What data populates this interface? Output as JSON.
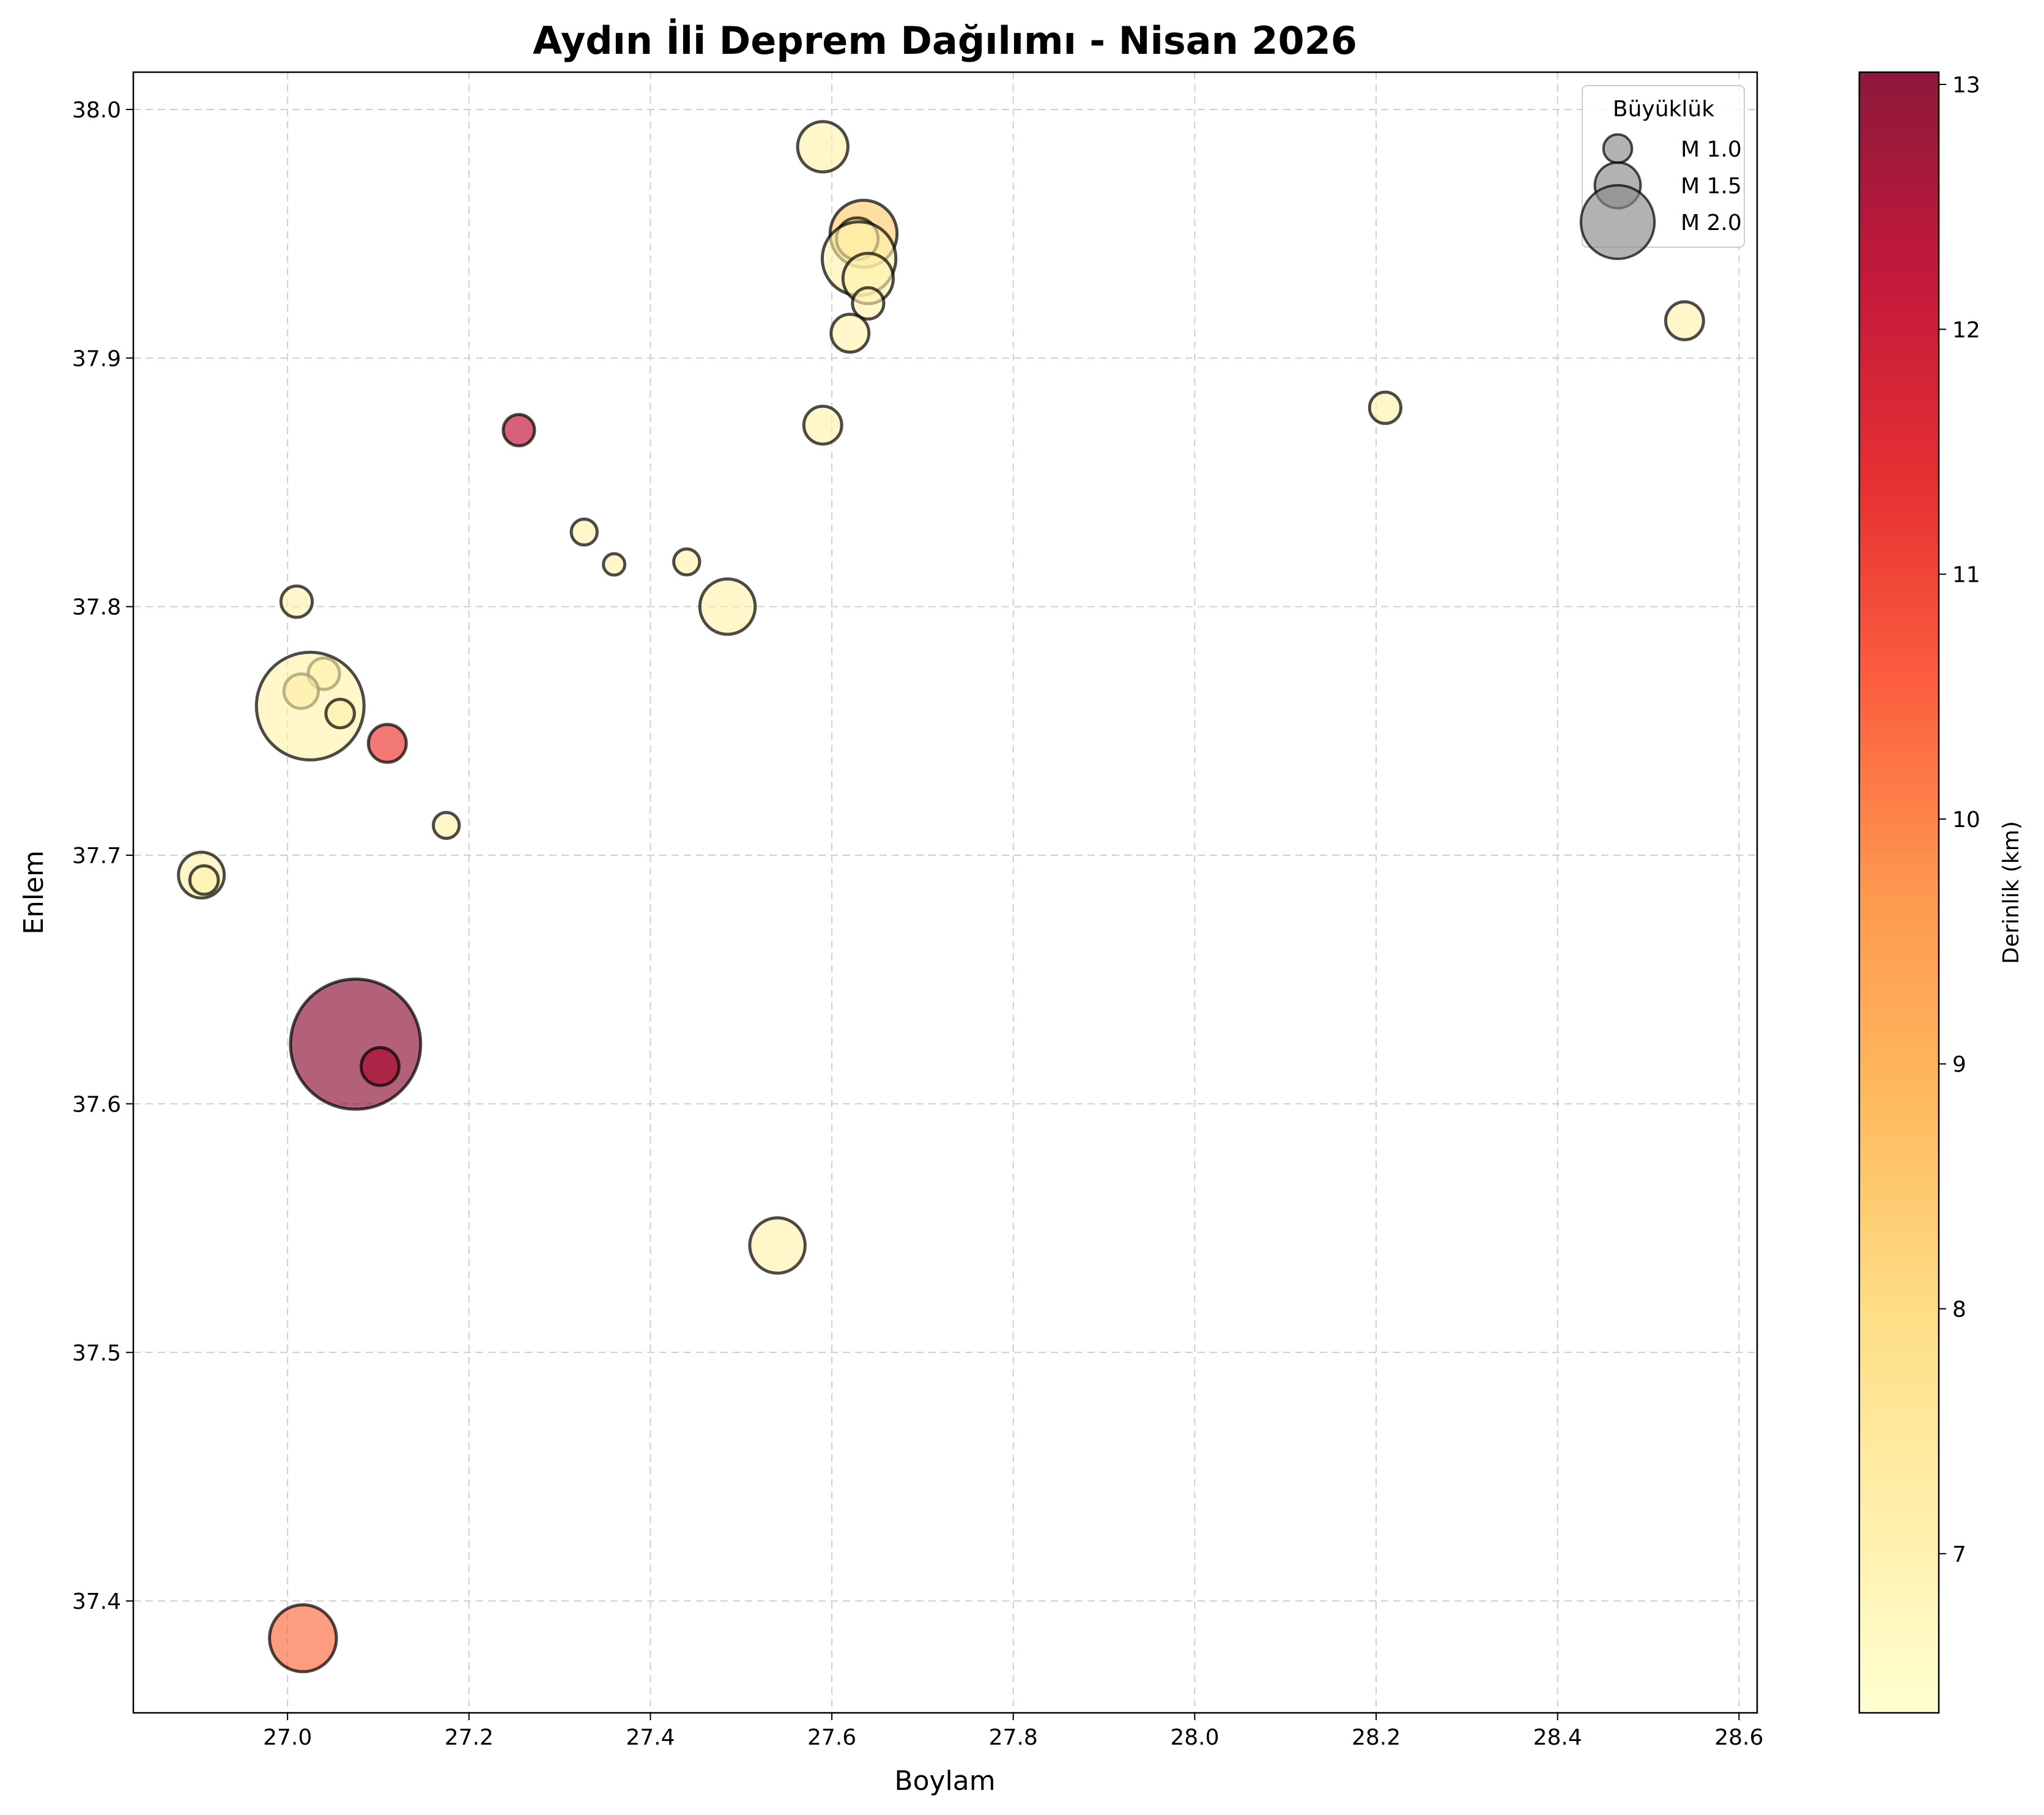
{
  "chart_data": {
    "type": "scatter",
    "title": "Aydın İli Deprem Dağılımı - Nisan 2026",
    "xlabel": "Boylam",
    "ylabel": "Enlem",
    "xlim": [
      26.83,
      28.62
    ],
    "ylim": [
      37.355,
      38.015
    ],
    "xticks": [
      "27.0",
      "27.2",
      "27.4",
      "27.6",
      "27.8",
      "28.0",
      "28.2",
      "28.4",
      "28.6"
    ],
    "yticks": [
      "37.4",
      "37.5",
      "37.6",
      "37.7",
      "37.8",
      "37.9",
      "38.0"
    ],
    "grid": true,
    "colorbar": {
      "label": "Derinlik (km)",
      "min": 6.35,
      "max": 13.05,
      "ticks": [
        "7",
        "8",
        "9",
        "10",
        "11",
        "12",
        "13"
      ],
      "colors": [
        "#ffffcc",
        "#ffeda0",
        "#fed976",
        "#feb24c",
        "#fd8d3c",
        "#fc4e2a",
        "#e31a1c",
        "#bd0026",
        "#800026"
      ]
    },
    "legend": {
      "title": "Büyüklük",
      "position": "upper right",
      "items": [
        {
          "label": "M 1.0",
          "magnitude": 1.0
        },
        {
          "label": "M 1.5",
          "magnitude": 1.5
        },
        {
          "label": "M 2.0",
          "magnitude": 2.0
        }
      ]
    },
    "points": [
      {
        "lon": 27.59,
        "lat": 37.985,
        "mag": 1.6,
        "depth": 7.0
      },
      {
        "lon": 27.635,
        "lat": 37.95,
        "mag": 1.9,
        "depth": 8.3
      },
      {
        "lon": 27.628,
        "lat": 37.948,
        "mag": 1.4,
        "depth": 7.2
      },
      {
        "lon": 27.63,
        "lat": 37.94,
        "mag": 2.0,
        "depth": 7.0
      },
      {
        "lon": 27.64,
        "lat": 37.932,
        "mag": 1.6,
        "depth": 7.0
      },
      {
        "lon": 27.64,
        "lat": 37.922,
        "mag": 1.1,
        "depth": 7.0
      },
      {
        "lon": 27.62,
        "lat": 37.91,
        "mag": 1.3,
        "depth": 7.0
      },
      {
        "lon": 27.59,
        "lat": 37.873,
        "mag": 1.3,
        "depth": 7.0
      },
      {
        "lon": 28.54,
        "lat": 37.915,
        "mag": 1.3,
        "depth": 7.0
      },
      {
        "lon": 28.21,
        "lat": 37.88,
        "mag": 1.1,
        "depth": 7.0
      },
      {
        "lon": 27.255,
        "lat": 37.871,
        "mag": 1.1,
        "depth": 12.2
      },
      {
        "lon": 27.327,
        "lat": 37.83,
        "mag": 0.9,
        "depth": 7.0
      },
      {
        "lon": 27.36,
        "lat": 37.817,
        "mag": 0.7,
        "depth": 7.0
      },
      {
        "lon": 27.44,
        "lat": 37.818,
        "mag": 0.9,
        "depth": 7.0
      },
      {
        "lon": 27.485,
        "lat": 37.8,
        "mag": 1.7,
        "depth": 7.0
      },
      {
        "lon": 27.01,
        "lat": 37.802,
        "mag": 1.1,
        "depth": 7.0
      },
      {
        "lon": 27.04,
        "lat": 37.773,
        "mag": 1.1,
        "depth": 7.0
      },
      {
        "lon": 27.015,
        "lat": 37.766,
        "mag": 1.2,
        "depth": 7.3
      },
      {
        "lon": 27.025,
        "lat": 37.76,
        "mag": 2.4,
        "depth": 7.0
      },
      {
        "lon": 27.058,
        "lat": 37.757,
        "mag": 1.0,
        "depth": 7.0
      },
      {
        "lon": 27.11,
        "lat": 37.745,
        "mag": 1.3,
        "depth": 11.2
      },
      {
        "lon": 27.175,
        "lat": 37.712,
        "mag": 0.9,
        "depth": 7.0
      },
      {
        "lon": 26.905,
        "lat": 37.692,
        "mag": 1.5,
        "depth": 7.0
      },
      {
        "lon": 26.908,
        "lat": 37.69,
        "mag": 1.0,
        "depth": 7.0
      },
      {
        "lon": 27.075,
        "lat": 37.624,
        "mag": 2.6,
        "depth": 13.0
      },
      {
        "lon": 27.102,
        "lat": 37.615,
        "mag": 1.3,
        "depth": 12.5
      },
      {
        "lon": 27.54,
        "lat": 37.543,
        "mag": 1.7,
        "depth": 7.0
      },
      {
        "lon": 27.017,
        "lat": 37.385,
        "mag": 1.9,
        "depth": 10.3
      }
    ]
  }
}
